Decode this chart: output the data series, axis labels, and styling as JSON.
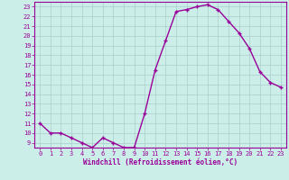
{
  "x": [
    0,
    1,
    2,
    3,
    4,
    5,
    6,
    7,
    8,
    9,
    10,
    11,
    12,
    13,
    14,
    15,
    16,
    17,
    18,
    19,
    20,
    21,
    22,
    23
  ],
  "y": [
    11,
    10,
    10,
    9.5,
    9,
    8.5,
    9.5,
    9,
    8.5,
    8.5,
    12,
    16.5,
    19.5,
    22.5,
    22.7,
    23.0,
    23.2,
    22.7,
    21.5,
    20.3,
    18.7,
    16.3,
    15.2,
    14.7
  ],
  "line_color": "#990099",
  "marker": "+",
  "marker_size": 3.5,
  "marker_lw": 1.0,
  "bg_color": "#cceee8",
  "grid_color": "#aacccc",
  "xlabel": "Windchill (Refroidissement éolien,°C)",
  "xlabel_color": "#990099",
  "tick_color": "#990099",
  "spine_color": "#990099",
  "ylim": [
    8.5,
    23.5
  ],
  "xlim": [
    -0.5,
    23.5
  ],
  "yticks": [
    9,
    10,
    11,
    12,
    13,
    14,
    15,
    16,
    17,
    18,
    19,
    20,
    21,
    22,
    23
  ],
  "xticks": [
    0,
    1,
    2,
    3,
    4,
    5,
    6,
    7,
    8,
    9,
    10,
    11,
    12,
    13,
    14,
    15,
    16,
    17,
    18,
    19,
    20,
    21,
    22,
    23
  ],
  "tick_fontsize": 5.0,
  "xlabel_fontsize": 5.5,
  "linewidth": 1.0
}
